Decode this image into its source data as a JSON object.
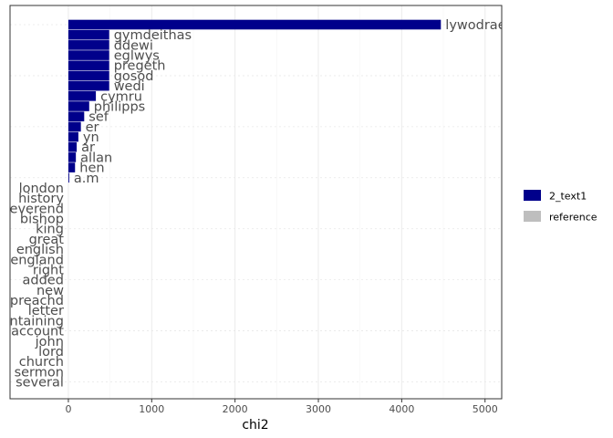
{
  "chart_data": {
    "type": "bar",
    "orientation": "horizontal",
    "xlabel": "chi2",
    "xlim": [
      -700,
      5200
    ],
    "xticks": [
      0,
      1000,
      2000,
      3000,
      4000,
      5000
    ],
    "xtick_labels": [
      "0",
      "1000",
      "2000",
      "3000",
      "4000",
      "5000"
    ],
    "grid": true,
    "legend_position": "right",
    "legend": [
      {
        "name": "2_text1",
        "color": "#00008B"
      },
      {
        "name": "reference",
        "color": "#BEBEBE"
      }
    ],
    "categories": [
      "lywodraeth",
      "gymdeithas",
      "ddewi",
      "eglwys",
      "pregeth",
      "gosod",
      "wedi",
      "cymru",
      "philipps",
      "sef",
      "er",
      "yn",
      "ar",
      "allan",
      "hen",
      "a.m",
      "london",
      "history",
      "reverend",
      "bishop",
      "king",
      "great",
      "english",
      "england",
      "right",
      "added",
      "new",
      "preachd",
      "letter",
      "containing",
      "account",
      "john",
      "lord",
      "church",
      "sermon",
      "several"
    ],
    "series": [
      {
        "name": "2_text1",
        "values": [
          4470,
          490,
          490,
          490,
          490,
          490,
          490,
          330,
          250,
          190,
          150,
          120,
          100,
          90,
          80,
          10,
          null,
          null,
          null,
          null,
          null,
          null,
          null,
          null,
          null,
          null,
          null,
          null,
          null,
          null,
          null,
          null,
          null,
          null,
          null,
          null
        ]
      },
      {
        "name": "reference",
        "values": [
          null,
          null,
          null,
          null,
          null,
          null,
          null,
          null,
          null,
          null,
          null,
          null,
          null,
          null,
          null,
          null,
          0,
          0,
          0,
          0,
          0,
          0,
          0,
          0,
          0,
          0,
          0,
          0,
          0,
          0,
          0,
          0,
          0,
          0,
          0,
          0
        ]
      }
    ],
    "label_text": [
      "lywodraeth",
      "gymdeithas",
      "ddewi",
      "eglwys",
      "pregeth",
      "gosod",
      "wedi",
      "cymru",
      "philipps",
      "sef",
      "er",
      "yn",
      "ar",
      "allan",
      "hen",
      "a.m",
      "london",
      "history",
      "reverend",
      "bishop",
      "king",
      "great",
      "english",
      "england",
      "right",
      "added",
      "new",
      "preachd",
      "letter",
      "containing",
      "account",
      "john",
      "lord",
      "church",
      "sermon",
      "several"
    ]
  }
}
